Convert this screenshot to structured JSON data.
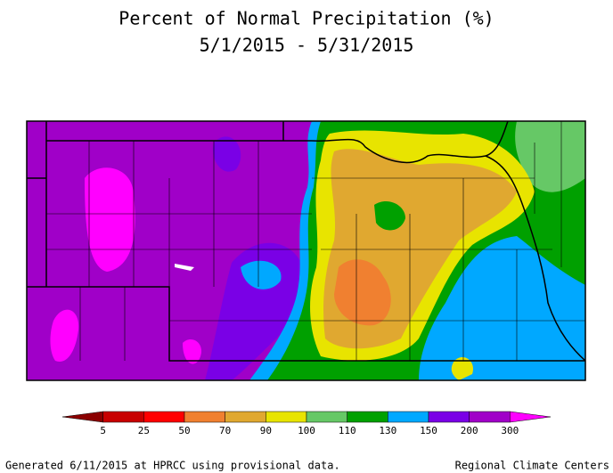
{
  "header": {
    "title": "Percent of Normal Precipitation (%)",
    "subtitle": "5/1/2015 - 5/31/2015"
  },
  "legend": {
    "colors": [
      "#8b0000",
      "#c80000",
      "#ff0000",
      "#f08030",
      "#e0a830",
      "#e8e400",
      "#66c866",
      "#00a000",
      "#00a8ff",
      "#7a00e6",
      "#a000c8",
      "#ff00ff"
    ],
    "labels": [
      5,
      25,
      50,
      70,
      90,
      100,
      110,
      130,
      150,
      200,
      300
    ]
  },
  "footer": {
    "left": "Generated 6/11/2015 at HPRCC using provisional data.",
    "right": "Regional Climate Centers"
  }
}
